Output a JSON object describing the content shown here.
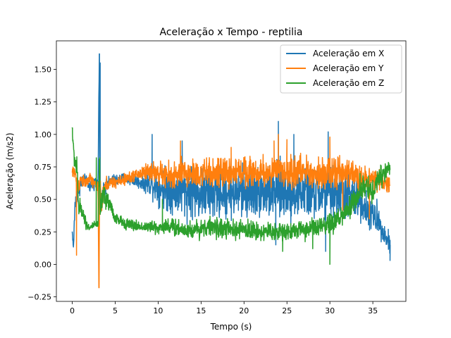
{
  "chart_data": {
    "type": "line",
    "title": "Aceleração x Tempo - reptilia",
    "xlabel": "Tempo (s)",
    "ylabel": "Aceleração (m/s2)",
    "xlim": [
      -1.85,
      38.85
    ],
    "ylim": [
      -0.285,
      1.72
    ],
    "x_ticks": [
      0,
      5,
      10,
      15,
      20,
      25,
      30,
      35
    ],
    "y_ticks": [
      -0.25,
      0.0,
      0.25,
      0.5,
      0.75,
      1.0,
      1.25,
      1.5
    ],
    "x_tick_labels": [
      "0",
      "5",
      "10",
      "15",
      "20",
      "25",
      "30",
      "35"
    ],
    "y_tick_labels": [
      "−0.25",
      "0.00",
      "0.25",
      "0.50",
      "0.75",
      "1.00",
      "1.25",
      "1.50"
    ],
    "legend_position": "top-right",
    "grid": false,
    "series": [
      {
        "name": "Aceleração em X",
        "color": "#1f77b4",
        "anchors_x": [
          0,
          0.15,
          0.3,
          0.6,
          1.0,
          1.5,
          2.0,
          2.5,
          3.0,
          3.15,
          3.2,
          3.3,
          3.6,
          4.0,
          5.0,
          6.0,
          7.0,
          8.0,
          9.0,
          10.0,
          11.0,
          12.0,
          13.0,
          14.0,
          15.0,
          16.0,
          17.0,
          18.0,
          19.0,
          20.0,
          21.0,
          22.0,
          23.0,
          24.0,
          25.0,
          26.0,
          27.0,
          28.0,
          29.0,
          30.0,
          31.0,
          32.0,
          33.0,
          33.5,
          34.0,
          34.5,
          35.0,
          35.5,
          36.0,
          36.5,
          37.0
        ],
        "anchors_y": [
          0.25,
          0.12,
          0.45,
          0.55,
          0.62,
          0.65,
          0.6,
          0.62,
          0.65,
          1.62,
          0.7,
          0.45,
          0.55,
          0.62,
          0.65,
          0.66,
          0.65,
          0.63,
          0.62,
          0.6,
          0.58,
          0.58,
          0.57,
          0.56,
          0.55,
          0.54,
          0.55,
          0.56,
          0.55,
          0.55,
          0.56,
          0.57,
          0.55,
          0.57,
          0.55,
          0.55,
          0.56,
          0.55,
          0.54,
          0.55,
          0.55,
          0.53,
          0.5,
          0.5,
          0.45,
          0.4,
          0.38,
          0.35,
          0.3,
          0.2,
          0.15
        ],
        "anchors_noise": [
          0.01,
          0.03,
          0.05,
          0.05,
          0.04,
          0.03,
          0.03,
          0.03,
          0.03,
          0.02,
          0.1,
          0.08,
          0.05,
          0.04,
          0.03,
          0.03,
          0.03,
          0.04,
          0.06,
          0.09,
          0.12,
          0.13,
          0.14,
          0.14,
          0.14,
          0.14,
          0.14,
          0.14,
          0.14,
          0.14,
          0.14,
          0.14,
          0.14,
          0.15,
          0.14,
          0.14,
          0.14,
          0.14,
          0.14,
          0.14,
          0.14,
          0.13,
          0.12,
          0.1,
          0.1,
          0.09,
          0.08,
          0.08,
          0.07,
          0.06,
          0.05
        ],
        "spikes": [
          [
            3.15,
            1.62
          ],
          [
            3.25,
            1.55
          ],
          [
            24.0,
            1.1
          ],
          [
            9.3,
            1.0
          ],
          [
            29.8,
            1.02
          ],
          [
            25.8,
            1.0
          ],
          [
            12.8,
            0.95
          ],
          [
            23.7,
            0.15
          ],
          [
            29.5,
            0.1
          ],
          [
            37.0,
            0.03
          ],
          [
            36.8,
            0.27
          ]
        ]
      },
      {
        "name": "Aceleração em Y",
        "color": "#ff7f0e",
        "anchors_x": [
          0,
          0.3,
          0.6,
          1.0,
          1.5,
          2.0,
          2.5,
          3.0,
          3.1,
          3.2,
          3.4,
          3.6,
          4.0,
          5.0,
          6.0,
          7.0,
          8.0,
          9.0,
          10.0,
          11.0,
          12.0,
          13.0,
          14.0,
          15.0,
          16.0,
          17.0,
          18.0,
          19.0,
          20.0,
          21.0,
          22.0,
          23.0,
          24.0,
          25.0,
          26.0,
          27.0,
          28.0,
          29.0,
          30.0,
          31.0,
          32.0,
          33.0,
          34.0,
          35.0,
          36.0,
          37.0
        ],
        "anchors_y": [
          0.7,
          0.72,
          0.58,
          0.66,
          0.62,
          0.66,
          0.62,
          0.6,
          -0.18,
          0.65,
          0.45,
          0.55,
          0.62,
          0.63,
          0.65,
          0.68,
          0.7,
          0.72,
          0.7,
          0.68,
          0.68,
          0.7,
          0.7,
          0.69,
          0.7,
          0.7,
          0.7,
          0.71,
          0.72,
          0.71,
          0.7,
          0.71,
          0.72,
          0.7,
          0.71,
          0.72,
          0.7,
          0.71,
          0.7,
          0.7,
          0.7,
          0.68,
          0.66,
          0.65,
          0.63,
          0.6
        ],
        "anchors_noise": [
          0.03,
          0.04,
          0.05,
          0.04,
          0.03,
          0.03,
          0.03,
          0.03,
          0.02,
          0.05,
          0.06,
          0.05,
          0.04,
          0.03,
          0.03,
          0.03,
          0.04,
          0.05,
          0.06,
          0.07,
          0.08,
          0.08,
          0.08,
          0.08,
          0.08,
          0.08,
          0.08,
          0.08,
          0.08,
          0.08,
          0.08,
          0.08,
          0.08,
          0.08,
          0.08,
          0.08,
          0.08,
          0.08,
          0.08,
          0.08,
          0.08,
          0.07,
          0.06,
          0.06,
          0.05,
          0.05
        ],
        "spikes": [
          [
            3.1,
            -0.18
          ],
          [
            0.5,
            0.07
          ],
          [
            25.0,
            0.96
          ],
          [
            24.0,
            1.0
          ],
          [
            12.6,
            0.95
          ],
          [
            30.0,
            0.98
          ],
          [
            23.5,
            0.95
          ],
          [
            34.6,
            0.35
          ],
          [
            31.5,
            0.35
          ],
          [
            18.5,
            0.9
          ]
        ]
      },
      {
        "name": "Aceleração em Z",
        "color": "#2ca02c",
        "anchors_x": [
          0,
          0.1,
          0.3,
          0.5,
          0.8,
          1.0,
          1.3,
          1.6,
          2.0,
          2.5,
          3.0,
          3.15,
          3.3,
          3.6,
          4.0,
          4.5,
          5.0,
          6.0,
          7.0,
          8.0,
          9.0,
          10.0,
          11.0,
          12.0,
          13.0,
          14.0,
          15.0,
          16.0,
          17.0,
          18.0,
          19.0,
          20.0,
          21.0,
          22.0,
          23.0,
          24.0,
          25.0,
          26.0,
          27.0,
          28.0,
          29.0,
          30.0,
          31.0,
          32.0,
          33.0,
          34.0,
          35.0,
          36.0,
          36.5,
          37.0
        ],
        "anchors_y": [
          1.05,
          0.9,
          0.8,
          0.75,
          0.4,
          0.45,
          0.38,
          0.32,
          0.28,
          0.3,
          0.3,
          0.7,
          0.4,
          0.55,
          0.5,
          0.45,
          0.35,
          0.32,
          0.3,
          0.29,
          0.29,
          0.28,
          0.3,
          0.28,
          0.27,
          0.26,
          0.28,
          0.29,
          0.28,
          0.27,
          0.26,
          0.27,
          0.26,
          0.25,
          0.25,
          0.25,
          0.26,
          0.26,
          0.27,
          0.28,
          0.28,
          0.3,
          0.35,
          0.4,
          0.5,
          0.6,
          0.55,
          0.7,
          0.72,
          0.75
        ],
        "anchors_noise": [
          0.03,
          0.05,
          0.05,
          0.08,
          0.06,
          0.05,
          0.04,
          0.03,
          0.02,
          0.02,
          0.02,
          0.1,
          0.08,
          0.06,
          0.06,
          0.05,
          0.03,
          0.03,
          0.03,
          0.03,
          0.03,
          0.04,
          0.04,
          0.05,
          0.05,
          0.05,
          0.05,
          0.05,
          0.05,
          0.05,
          0.05,
          0.05,
          0.05,
          0.05,
          0.05,
          0.05,
          0.05,
          0.05,
          0.05,
          0.05,
          0.06,
          0.06,
          0.06,
          0.06,
          0.06,
          0.07,
          0.06,
          0.06,
          0.05,
          0.05
        ],
        "spikes": [
          [
            0.0,
            1.05
          ],
          [
            30.0,
            0.0
          ],
          [
            33.5,
            0.7
          ],
          [
            35.9,
            0.65
          ],
          [
            2.8,
            0.82
          ],
          [
            3.2,
            0.82
          ],
          [
            34.5,
            0.68
          ],
          [
            10.5,
            0.5
          ],
          [
            24.5,
            0.1
          ],
          [
            28.0,
            0.12
          ],
          [
            32.3,
            0.45
          ]
        ]
      }
    ]
  }
}
